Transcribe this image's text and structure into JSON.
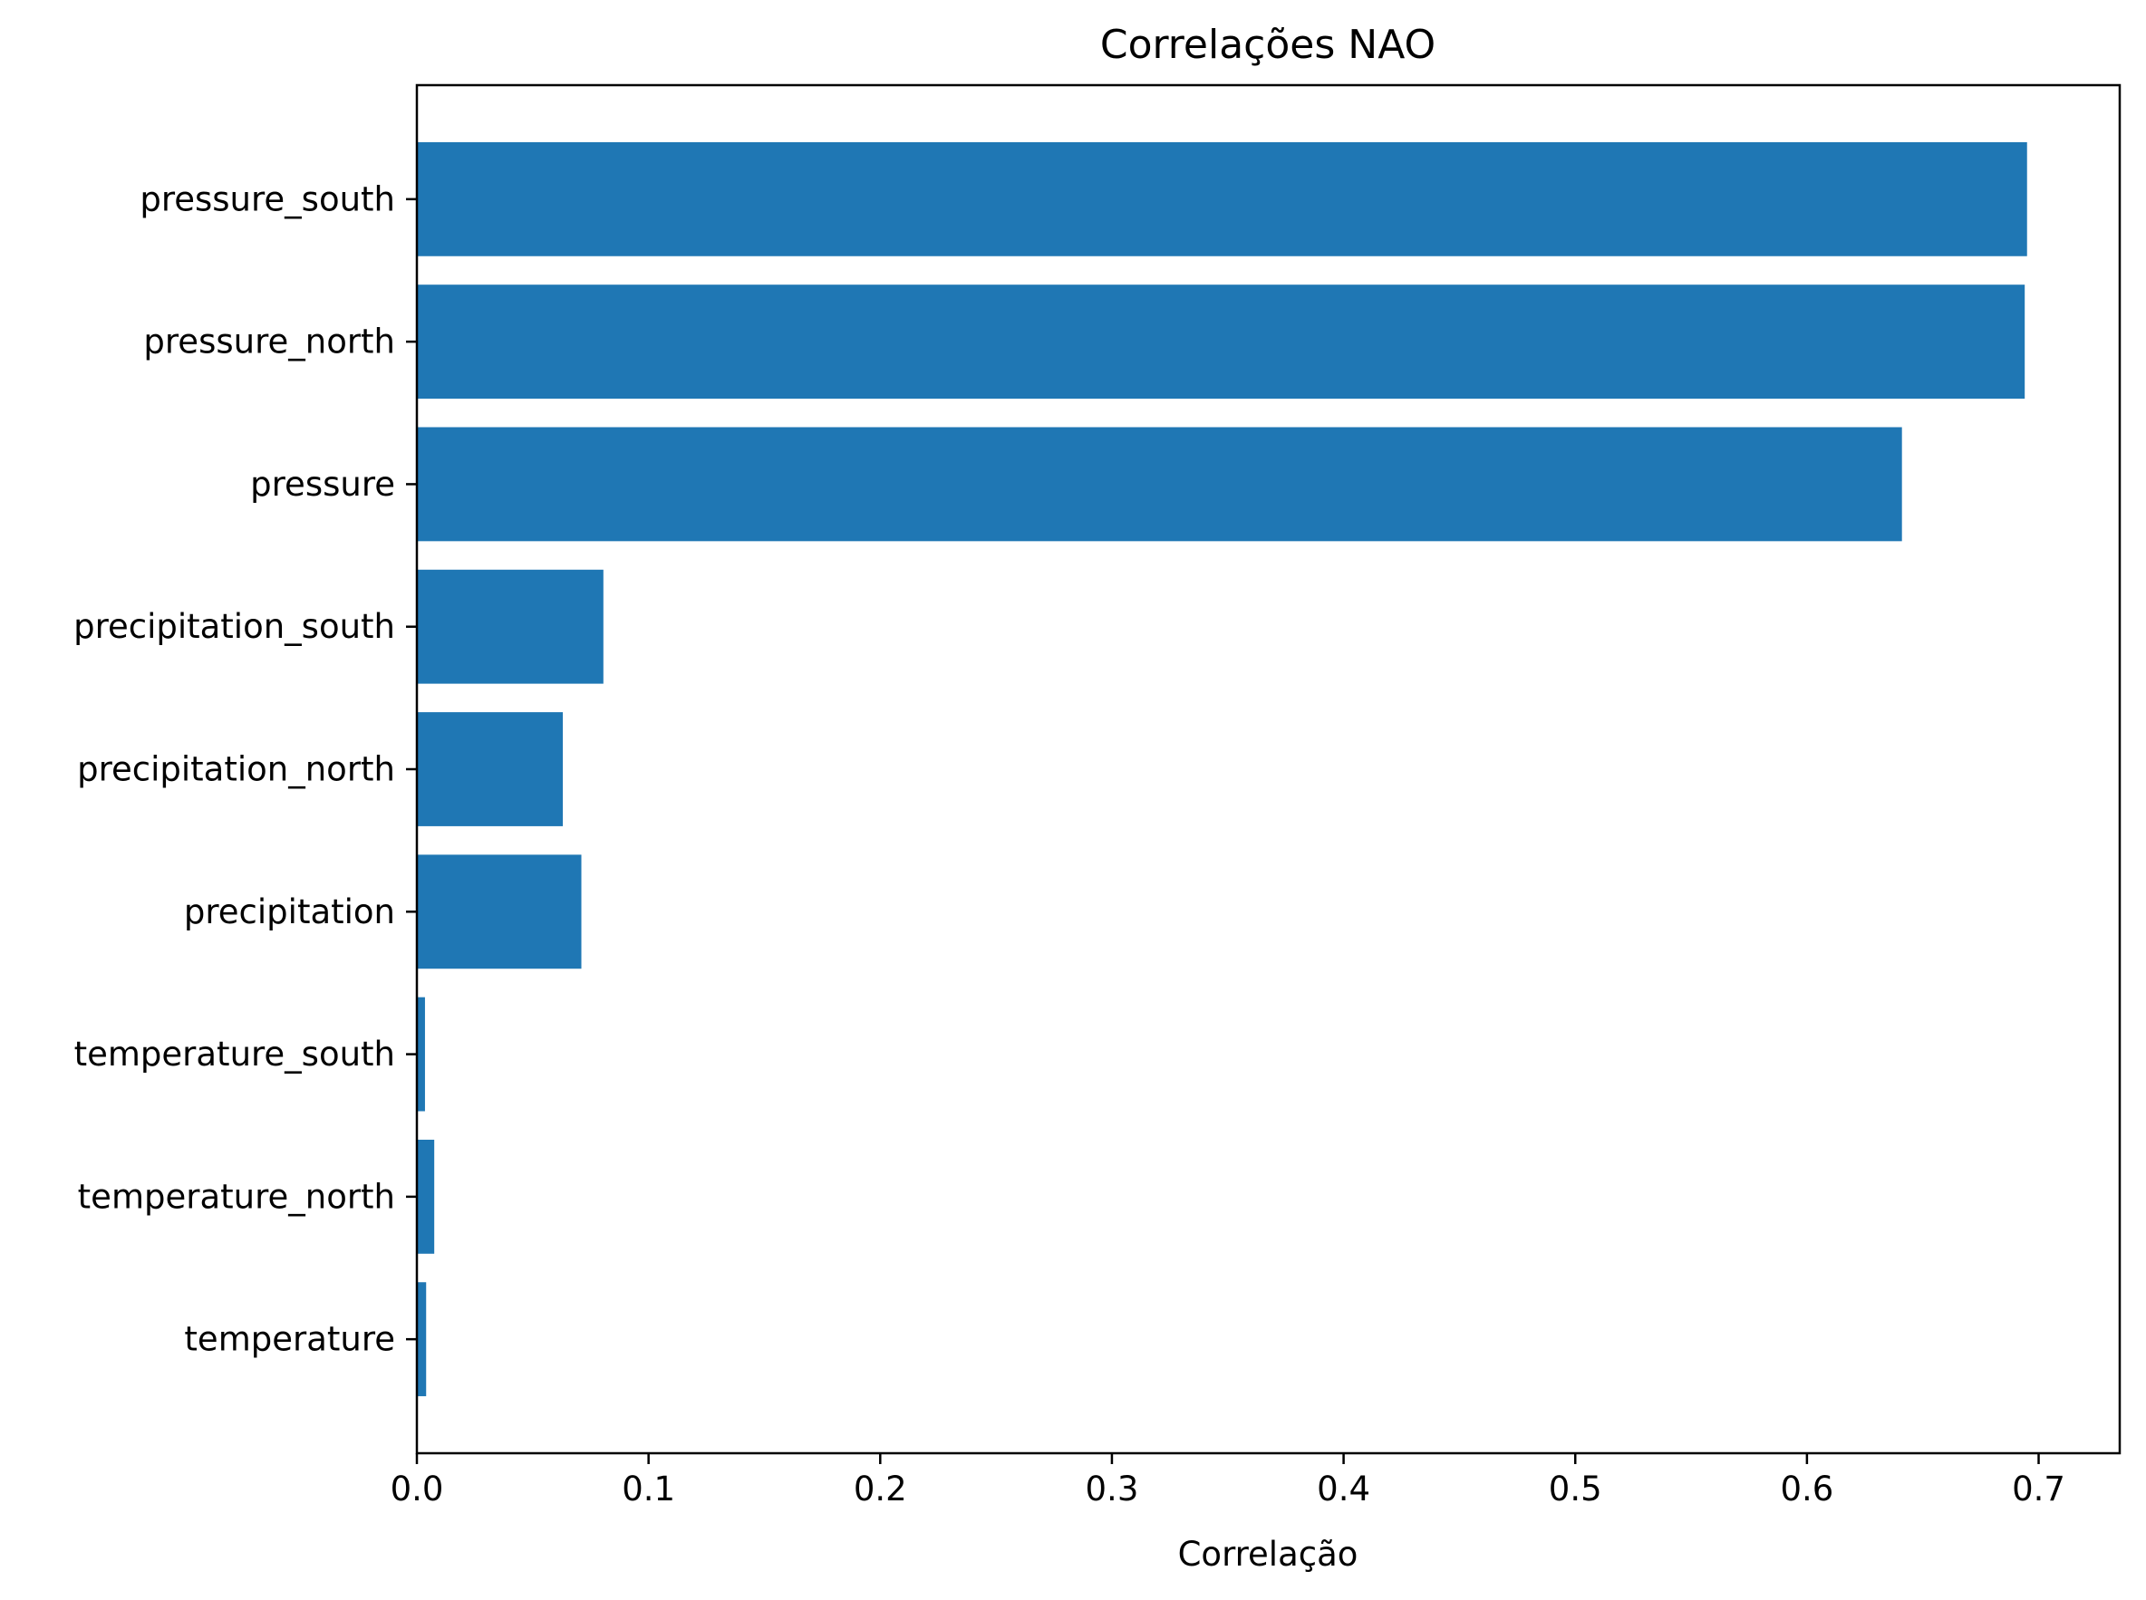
{
  "chart_data": {
    "type": "bar",
    "orientation": "horizontal",
    "title": "Correlações NAO",
    "xlabel": "Correlação",
    "ylabel": "",
    "xlim": [
      0,
      0.735
    ],
    "xticks": [
      0.0,
      0.1,
      0.2,
      0.3,
      0.4,
      0.5,
      0.6,
      0.7
    ],
    "xtick_labels": [
      "0.0",
      "0.1",
      "0.2",
      "0.3",
      "0.4",
      "0.5",
      "0.6",
      "0.7"
    ],
    "categories": [
      "temperature",
      "temperature_north",
      "temperature_south",
      "precipitation",
      "precipitation_north",
      "precipitation_south",
      "pressure",
      "pressure_north",
      "pressure_south"
    ],
    "values": [
      0.004,
      0.0075,
      0.0035,
      0.071,
      0.063,
      0.0805,
      0.641,
      0.694,
      0.695
    ],
    "grid": false,
    "legend": "none",
    "bar_color": "#1f77b4"
  }
}
